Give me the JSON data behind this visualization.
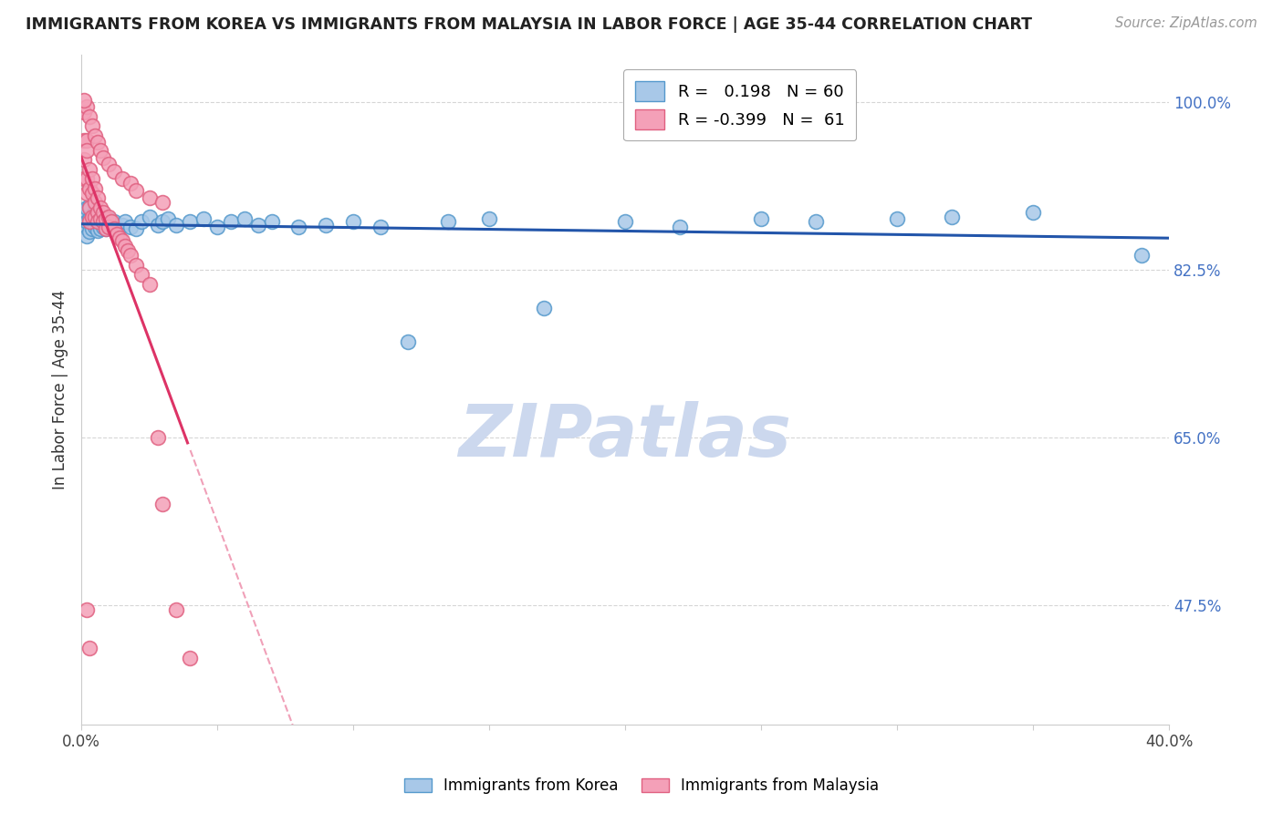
{
  "title": "IMMIGRANTS FROM KOREA VS IMMIGRANTS FROM MALAYSIA IN LABOR FORCE | AGE 35-44 CORRELATION CHART",
  "source": "Source: ZipAtlas.com",
  "ylabel": "In Labor Force | Age 35-44",
  "korea_R": 0.198,
  "korea_N": 60,
  "malaysia_R": -0.399,
  "malaysia_N": 61,
  "korea_color": "#a8c8e8",
  "korea_edge": "#5599cc",
  "malaysia_color": "#f4a0b8",
  "malaysia_edge": "#e06080",
  "korea_line_color": "#2255aa",
  "malaysia_line_color": "#dd3366",
  "malaysia_line_dash_color": "#f0a0b8",
  "background_color": "#ffffff",
  "grid_color": "#cccccc",
  "right_ytick_positions": [
    1.0,
    0.825,
    0.65,
    0.475
  ],
  "right_ytick_labels": [
    "100.0%",
    "82.5%",
    "65.0%",
    "47.5%"
  ],
  "xlim": [
    0.0,
    0.4
  ],
  "ylim": [
    0.35,
    1.05
  ],
  "korea_x": [
    0.001,
    0.001,
    0.002,
    0.002,
    0.002,
    0.003,
    0.003,
    0.003,
    0.004,
    0.004,
    0.004,
    0.005,
    0.005,
    0.005,
    0.006,
    0.006,
    0.006,
    0.007,
    0.007,
    0.008,
    0.008,
    0.009,
    0.01,
    0.01,
    0.011,
    0.012,
    0.013,
    0.015,
    0.016,
    0.018,
    0.02,
    0.022,
    0.025,
    0.028,
    0.03,
    0.032,
    0.035,
    0.04,
    0.045,
    0.05,
    0.055,
    0.06,
    0.065,
    0.07,
    0.08,
    0.09,
    0.1,
    0.11,
    0.12,
    0.135,
    0.15,
    0.17,
    0.2,
    0.22,
    0.25,
    0.27,
    0.3,
    0.32,
    0.35,
    0.39
  ],
  "korea_y": [
    0.87,
    0.88,
    0.86,
    0.875,
    0.89,
    0.865,
    0.878,
    0.892,
    0.868,
    0.882,
    0.875,
    0.87,
    0.885,
    0.878,
    0.872,
    0.866,
    0.88,
    0.875,
    0.868,
    0.87,
    0.875,
    0.868,
    0.872,
    0.878,
    0.87,
    0.875,
    0.868,
    0.872,
    0.875,
    0.87,
    0.868,
    0.875,
    0.88,
    0.872,
    0.875,
    0.878,
    0.872,
    0.875,
    0.878,
    0.87,
    0.875,
    0.878,
    0.872,
    0.875,
    0.87,
    0.872,
    0.875,
    0.87,
    0.75,
    0.875,
    0.878,
    0.785,
    0.875,
    0.87,
    0.878,
    0.875,
    0.878,
    0.88,
    0.885,
    0.84
  ],
  "malaysia_x": [
    0.001,
    0.001,
    0.001,
    0.001,
    0.002,
    0.002,
    0.002,
    0.002,
    0.003,
    0.003,
    0.003,
    0.003,
    0.004,
    0.004,
    0.004,
    0.005,
    0.005,
    0.005,
    0.006,
    0.006,
    0.006,
    0.007,
    0.007,
    0.008,
    0.008,
    0.009,
    0.009,
    0.01,
    0.01,
    0.011,
    0.012,
    0.013,
    0.014,
    0.015,
    0.016,
    0.017,
    0.018,
    0.02,
    0.022,
    0.025,
    0.028,
    0.03,
    0.035,
    0.04,
    0.002,
    0.003,
    0.004,
    0.005,
    0.006,
    0.007,
    0.008,
    0.01,
    0.012,
    0.015,
    0.018,
    0.02,
    0.025,
    0.03,
    0.002,
    0.003,
    0.001
  ],
  "malaysia_y": [
    0.99,
    0.96,
    0.94,
    0.92,
    0.96,
    0.95,
    0.92,
    0.905,
    0.93,
    0.91,
    0.89,
    0.875,
    0.92,
    0.905,
    0.88,
    0.91,
    0.895,
    0.88,
    0.9,
    0.885,
    0.875,
    0.89,
    0.878,
    0.885,
    0.875,
    0.878,
    0.868,
    0.88,
    0.87,
    0.875,
    0.868,
    0.862,
    0.858,
    0.855,
    0.85,
    0.845,
    0.84,
    0.83,
    0.82,
    0.81,
    0.65,
    0.58,
    0.47,
    0.42,
    0.995,
    0.985,
    0.975,
    0.965,
    0.958,
    0.95,
    0.942,
    0.935,
    0.928,
    0.92,
    0.915,
    0.908,
    0.9,
    0.895,
    0.47,
    0.43,
    1.002
  ]
}
